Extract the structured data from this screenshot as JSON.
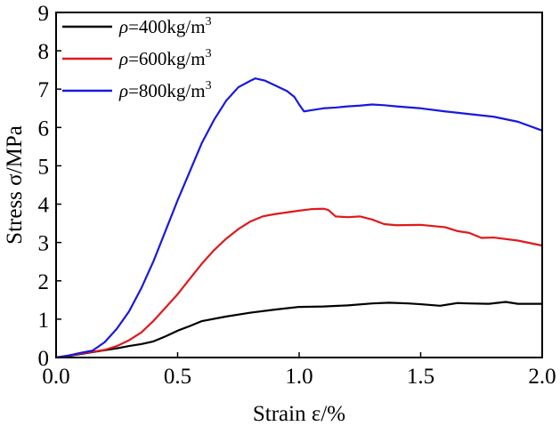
{
  "chart_data": {
    "type": "line",
    "title": "",
    "xlabel": "Strain ε/%",
    "ylabel": "Stress σ/MPa",
    "xlim": [
      0,
      2
    ],
    "ylim": [
      0,
      9
    ],
    "xticks": [
      "0.0",
      "0.5",
      "1.0",
      "1.5",
      "2.0"
    ],
    "yticks": [
      "0",
      "1",
      "2",
      "3",
      "4",
      "5",
      "6",
      "7",
      "8",
      "9"
    ],
    "grid": false,
    "legend_position": "top-left",
    "series": [
      {
        "name": "ρ=400kg/m3",
        "legend_symbol": "ρ",
        "legend_text": "=400kg/m",
        "legend_sup": "3",
        "color": "#000000",
        "x": [
          0,
          0.05,
          0.1,
          0.15,
          0.2,
          0.25,
          0.3,
          0.35,
          0.4,
          0.45,
          0.5,
          0.55,
          0.6,
          0.7,
          0.8,
          0.9,
          1.0,
          1.1,
          1.2,
          1.3,
          1.37,
          1.45,
          1.5,
          1.58,
          1.65,
          1.7,
          1.78,
          1.85,
          1.9,
          2.0
        ],
        "y": [
          0,
          0.04,
          0.09,
          0.14,
          0.19,
          0.24,
          0.3,
          0.35,
          0.42,
          0.55,
          0.7,
          0.82,
          0.95,
          1.07,
          1.17,
          1.25,
          1.32,
          1.33,
          1.36,
          1.41,
          1.43,
          1.41,
          1.39,
          1.35,
          1.42,
          1.41,
          1.4,
          1.45,
          1.4,
          1.4
        ]
      },
      {
        "name": "ρ=600kg/m3",
        "legend_symbol": "ρ",
        "legend_text": "=600kg/m",
        "legend_sup": "3",
        "color": "#e0191b",
        "x": [
          0,
          0.1,
          0.2,
          0.25,
          0.3,
          0.35,
          0.4,
          0.45,
          0.5,
          0.55,
          0.6,
          0.65,
          0.7,
          0.75,
          0.8,
          0.85,
          0.9,
          1.0,
          1.05,
          1.1,
          1.12,
          1.15,
          1.2,
          1.25,
          1.3,
          1.35,
          1.4,
          1.5,
          1.6,
          1.65,
          1.7,
          1.75,
          1.8,
          1.9,
          2.0
        ],
        "y": [
          0,
          0.1,
          0.2,
          0.3,
          0.45,
          0.65,
          0.95,
          1.3,
          1.65,
          2.05,
          2.45,
          2.8,
          3.1,
          3.35,
          3.55,
          3.68,
          3.74,
          3.83,
          3.87,
          3.88,
          3.85,
          3.68,
          3.66,
          3.68,
          3.6,
          3.48,
          3.45,
          3.46,
          3.4,
          3.3,
          3.25,
          3.12,
          3.13,
          3.05,
          2.92
        ]
      },
      {
        "name": "ρ=800kg/m3",
        "legend_symbol": "ρ",
        "legend_text": "=800kg/m",
        "legend_sup": "3",
        "color": "#1818e0",
        "x": [
          0,
          0.05,
          0.1,
          0.15,
          0.2,
          0.25,
          0.3,
          0.35,
          0.4,
          0.45,
          0.5,
          0.55,
          0.6,
          0.65,
          0.7,
          0.75,
          0.8,
          0.82,
          0.86,
          0.9,
          0.95,
          0.98,
          1.0,
          1.02,
          1.05,
          1.1,
          1.15,
          1.2,
          1.25,
          1.3,
          1.35,
          1.4,
          1.5,
          1.6,
          1.7,
          1.8,
          1.9,
          2.0
        ],
        "y": [
          0,
          0.05,
          0.12,
          0.18,
          0.4,
          0.75,
          1.2,
          1.8,
          2.5,
          3.3,
          4.1,
          4.85,
          5.6,
          6.2,
          6.7,
          7.05,
          7.22,
          7.28,
          7.22,
          7.1,
          6.95,
          6.8,
          6.6,
          6.42,
          6.45,
          6.5,
          6.52,
          6.55,
          6.57,
          6.6,
          6.58,
          6.55,
          6.5,
          6.42,
          6.35,
          6.28,
          6.15,
          5.92
        ]
      }
    ]
  }
}
